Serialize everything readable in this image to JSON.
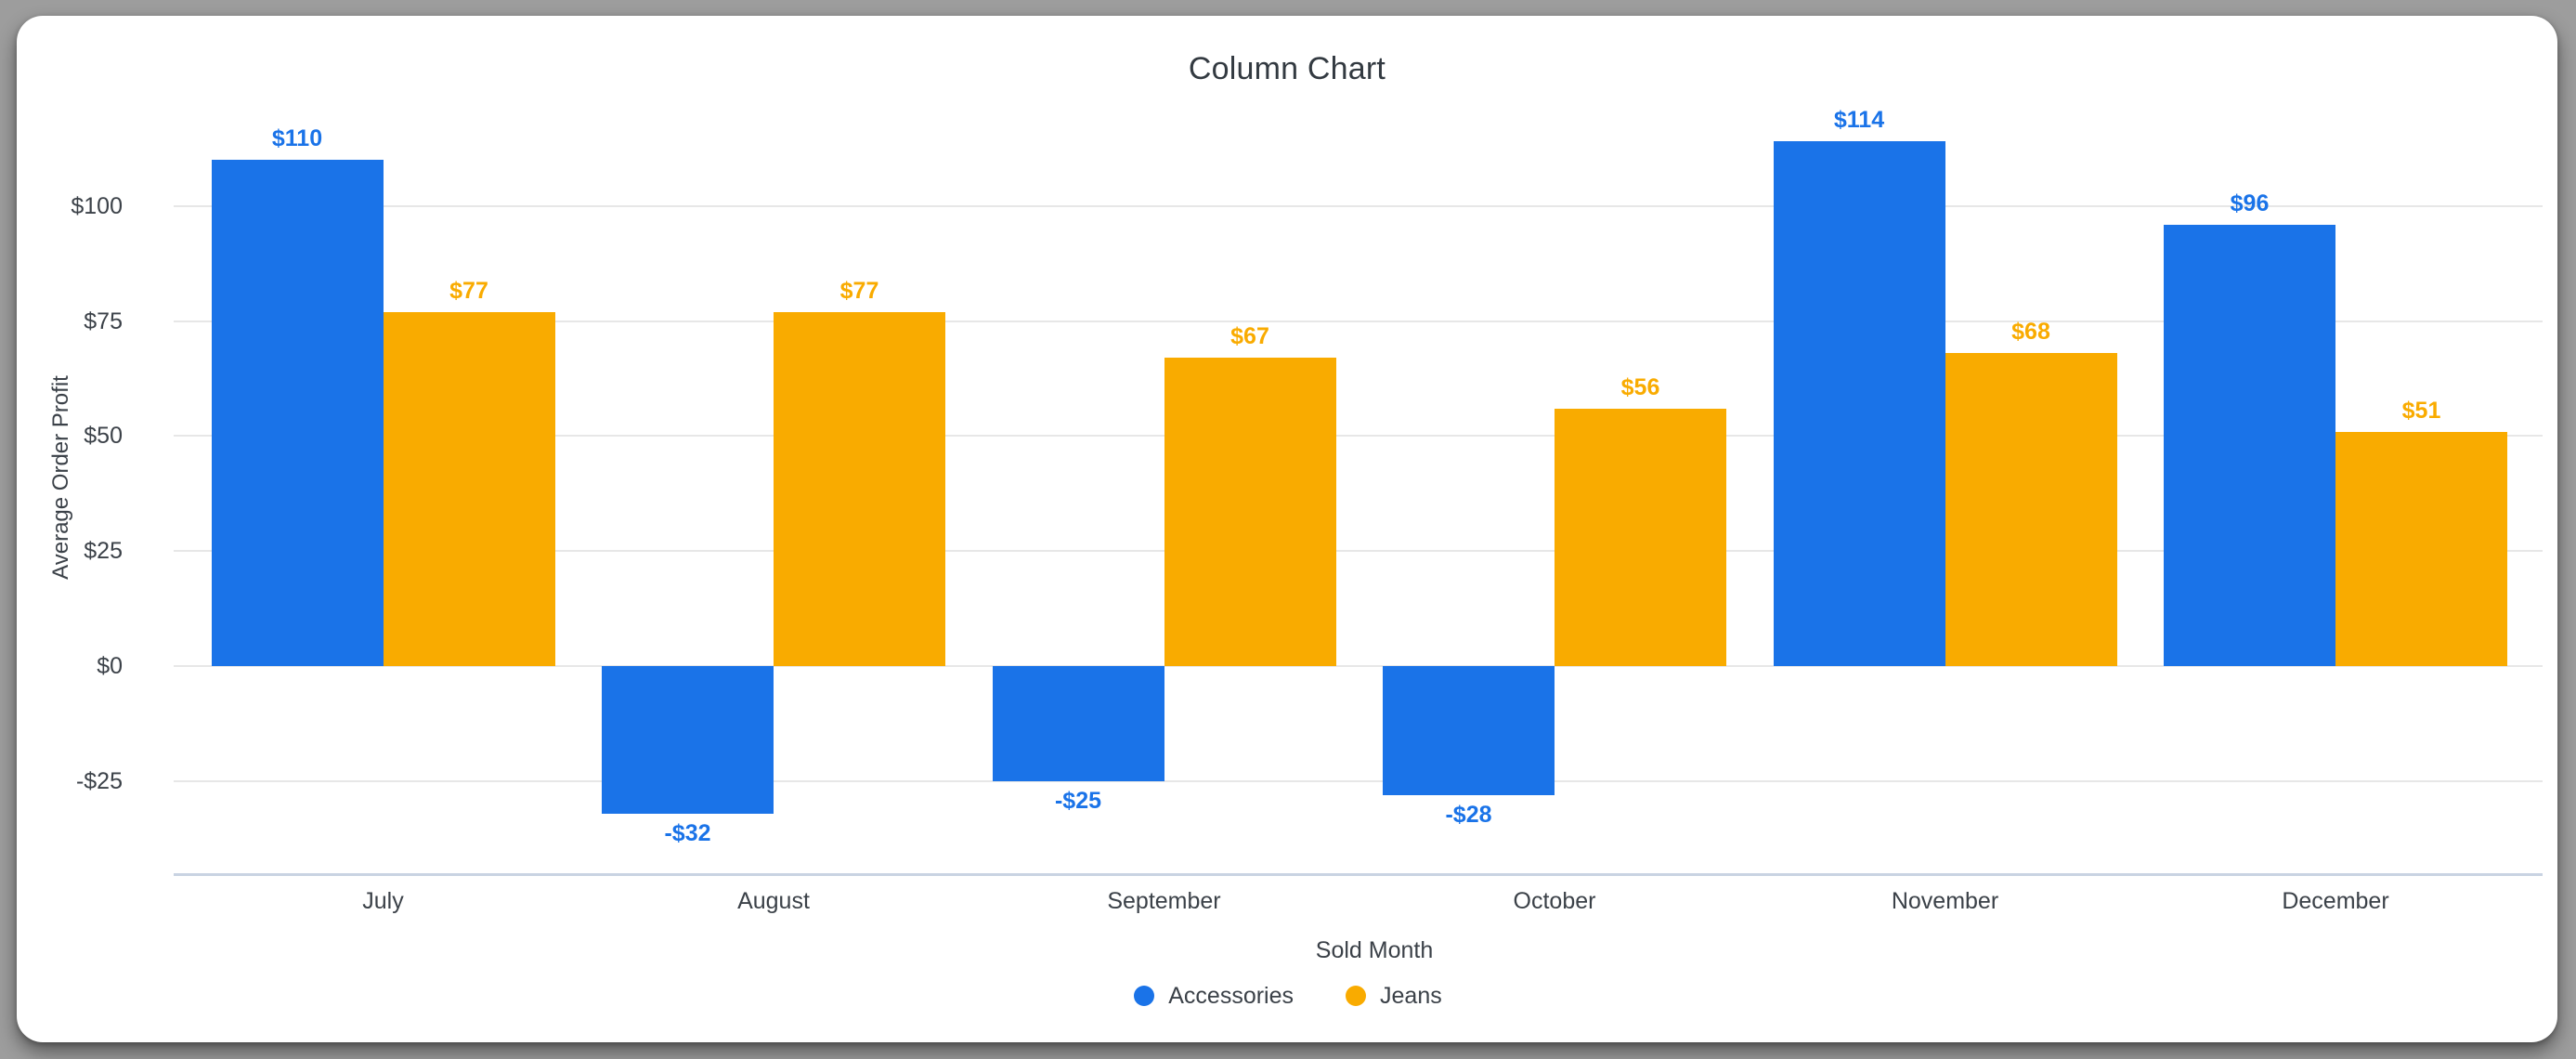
{
  "window": {
    "background_color": "#9d9d9d",
    "card_color": "#ffffff"
  },
  "chart_data": {
    "type": "bar",
    "title": "Column Chart",
    "xlabel": "Sold Month",
    "ylabel": "Average Order Profit",
    "categories": [
      "July",
      "August",
      "September",
      "October",
      "November",
      "December"
    ],
    "series": [
      {
        "name": "Accessories",
        "color": "#1a73e8",
        "values": [
          110,
          -32,
          -25,
          -28,
          114,
          96
        ],
        "labels": [
          "$110",
          "-$32",
          "-$25",
          "-$28",
          "$114",
          "$96"
        ]
      },
      {
        "name": "Jeans",
        "color": "#f9ab00",
        "values": [
          77,
          77,
          67,
          56,
          68,
          51
        ],
        "labels": [
          "$77",
          "$77",
          "$67",
          "$56",
          "$68",
          "$51"
        ]
      }
    ],
    "y_ticks": [
      {
        "value": 100,
        "label": "$100"
      },
      {
        "value": 75,
        "label": "$75"
      },
      {
        "value": 50,
        "label": "$50"
      },
      {
        "value": 25,
        "label": "$25"
      },
      {
        "value": 0,
        "label": "$0"
      },
      {
        "value": -25,
        "label": "-$25"
      }
    ],
    "ylim": [
      -45,
      125
    ],
    "grid": true,
    "legend_position": "bottom"
  }
}
